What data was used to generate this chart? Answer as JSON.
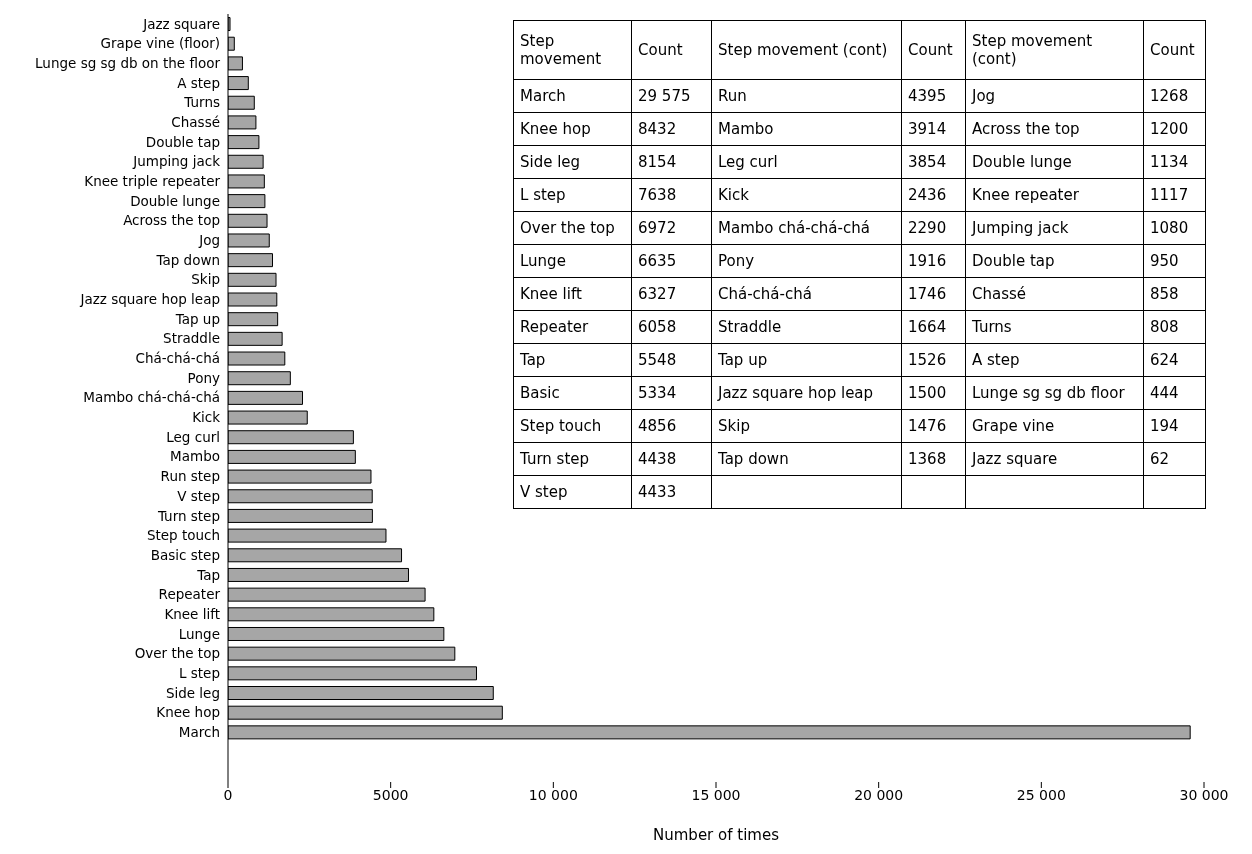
{
  "chart_data": [
    {
      "type": "bar",
      "orientation": "horizontal",
      "xlabel": "Number of times",
      "categories": [
        "Jazz square",
        "Grape vine (floor)",
        "Lunge sg sg db on the floor",
        "A step",
        "Turns",
        "Chassé",
        "Double tap",
        "Jumping jack",
        "Knee triple repeater",
        "Double lunge",
        "Across the top",
        "Jog",
        "Tap down",
        "Skip",
        "Jazz square hop leap",
        "Tap up",
        "Straddle",
        "Chá-chá-chá",
        "Pony",
        "Mambo chá-chá-chá",
        "Kick",
        "Leg curl",
        "Mambo",
        "Run step",
        "V step",
        "Turn step",
        "Step touch",
        "Basic step",
        "Tap",
        "Repeater",
        "Knee lift",
        "Lunge",
        "Over the top",
        "L step",
        "Side leg",
        "Knee hop",
        "March"
      ],
      "values": [
        62,
        194,
        444,
        624,
        808,
        858,
        950,
        1080,
        1117,
        1134,
        1200,
        1268,
        1368,
        1476,
        1500,
        1526,
        1664,
        1746,
        1916,
        2290,
        2436,
        3854,
        3914,
        4395,
        4433,
        4438,
        4856,
        5334,
        5548,
        6058,
        6327,
        6635,
        6972,
        7638,
        8154,
        8432,
        29575
      ],
      "color": "#a6a6a6",
      "xlim": [
        0,
        30000
      ],
      "xticks": [
        0,
        5000,
        {
          "value": 10000,
          "label": "10 000"
        },
        {
          "value": 15000,
          "label": "15 000"
        },
        {
          "value": 20000,
          "label": "20 000"
        },
        {
          "value": 25000,
          "label": "25 000"
        },
        {
          "value": 30000,
          "label": "30 000"
        }
      ],
      "grid": false,
      "legend": false
    },
    {
      "type": "other",
      "annotations": [
        "Step movement",
        "Count",
        "Step movement (cont)",
        "Count",
        "Step movement (cont)",
        "Count",
        "March",
        "29 575",
        "Run",
        "4395",
        "Jog",
        "1268",
        "Knee hop",
        "8432",
        "Mambo",
        "3914",
        "Across the top",
        "1200",
        "Side leg",
        "8154",
        "Leg curl",
        "3854",
        "Double lunge",
        "1134",
        "L step",
        "7638",
        "Kick",
        "2436",
        "Knee repeater",
        "1117",
        "Over the top",
        "6972",
        "Mambo chá-chá-chá",
        "2290",
        "Jumping jack",
        "1080",
        "Lunge",
        "6635",
        "Pony",
        "1916",
        "Double tap",
        "950",
        "Knee lift",
        "6327",
        "Chá-chá-chá",
        "1746",
        "Chassé",
        "858",
        "Repeater",
        "6058",
        "Straddle",
        "1664",
        "Turns",
        "808",
        "Tap",
        "5548",
        "Tap up",
        "1526",
        "A step",
        "624",
        "Basic",
        "5334",
        "Jazz square hop leap",
        "1500",
        "Lunge sg sg db floor",
        "444",
        "Step touch",
        "4856",
        "Skip",
        "1476",
        "Grape vine",
        "194",
        "Turn step",
        "4438",
        "Tap down",
        "1368",
        "Jazz square",
        "62",
        "V step",
        "4433"
      ]
    }
  ]
}
